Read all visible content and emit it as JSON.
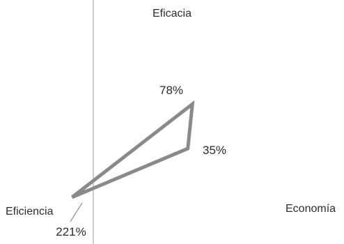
{
  "chart_data": {
    "type": "radar",
    "axes": [
      "Eficacia",
      "Economía",
      "Eficiencia"
    ],
    "values": [
      78,
      35,
      221
    ],
    "value_labels": [
      "78%",
      "35%",
      "221%"
    ],
    "unit": "%",
    "series": [
      {
        "values": [
          78,
          35,
          221
        ]
      }
    ],
    "colors": {
      "series_line": "#8a8a8a",
      "reference_line": "#9a9a9a",
      "text": "#2e2e2e"
    },
    "grid": false,
    "legend": "none"
  }
}
